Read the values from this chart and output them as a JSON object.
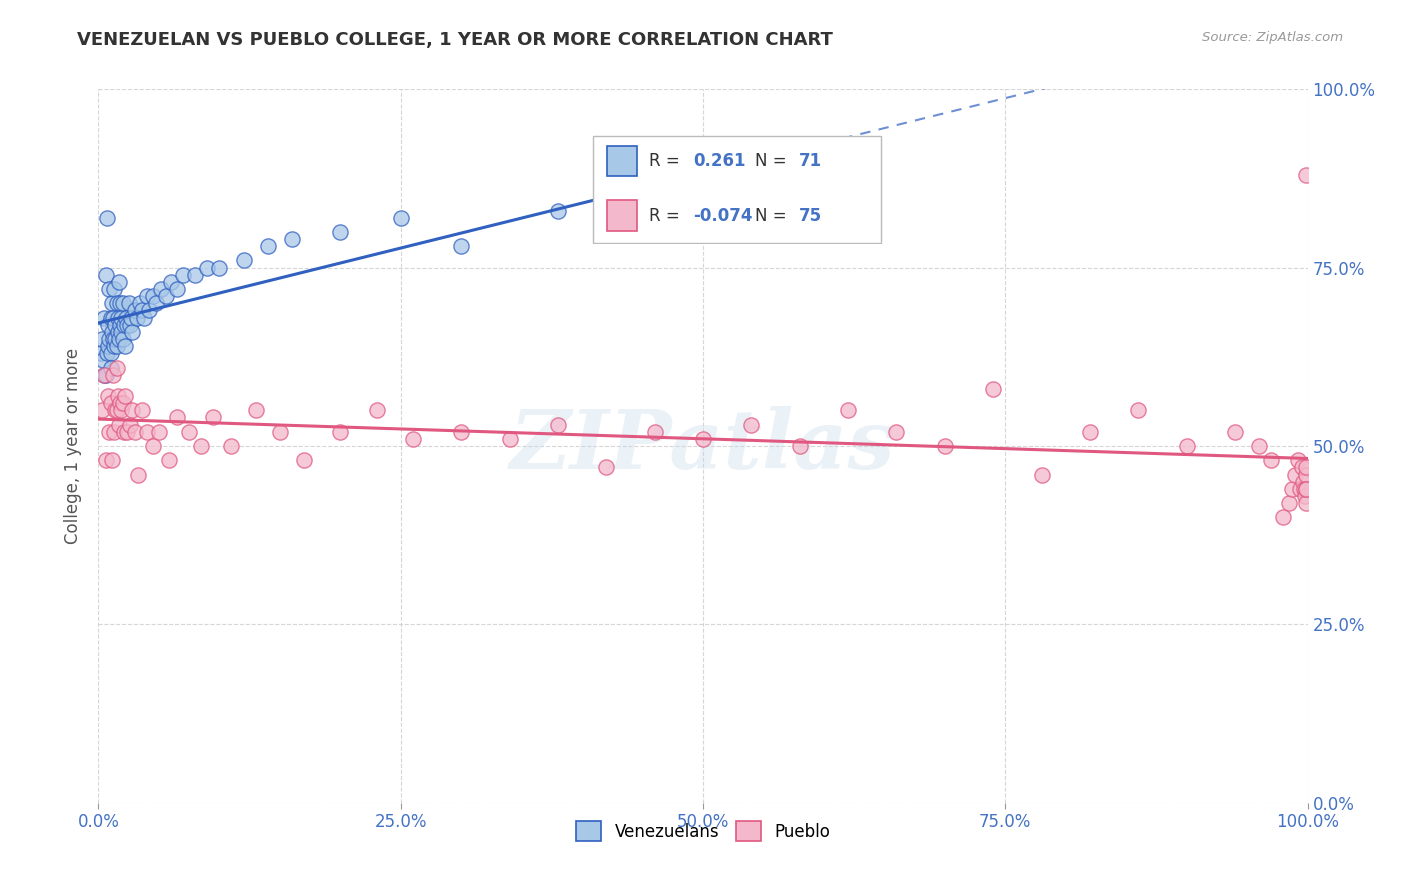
{
  "title": "VENEZUELAN VS PUEBLO COLLEGE, 1 YEAR OR MORE CORRELATION CHART",
  "source": "Source: ZipAtlas.com",
  "ylabel": "College, 1 year or more",
  "r_venezuelan": 0.261,
  "n_venezuelan": 71,
  "r_pueblo": -0.074,
  "n_pueblo": 75,
  "legend_labels": [
    "Venezuelans",
    "Pueblo"
  ],
  "color_venezuelan": "#a8c8e8",
  "color_pueblo": "#f4b8cc",
  "line_color_venezuelan": "#3060c0",
  "line_color_pueblo": "#e05880",
  "watermark": "ZIPatlas",
  "xmin": 0.0,
  "xmax": 1.0,
  "ymin": 0.0,
  "ymax": 1.0,
  "ytick_color": "#4472c4",
  "xtick_color": "#4472c4",
  "venezuelan_x": [
    0.002,
    0.003,
    0.004,
    0.005,
    0.005,
    0.006,
    0.006,
    0.007,
    0.007,
    0.008,
    0.008,
    0.009,
    0.009,
    0.01,
    0.01,
    0.01,
    0.011,
    0.011,
    0.012,
    0.012,
    0.013,
    0.013,
    0.014,
    0.014,
    0.015,
    0.015,
    0.016,
    0.016,
    0.017,
    0.017,
    0.018,
    0.018,
    0.019,
    0.019,
    0.02,
    0.02,
    0.021,
    0.022,
    0.023,
    0.024,
    0.025,
    0.026,
    0.027,
    0.028,
    0.03,
    0.032,
    0.034,
    0.036,
    0.038,
    0.04,
    0.042,
    0.045,
    0.048,
    0.052,
    0.056,
    0.06,
    0.065,
    0.07,
    0.08,
    0.09,
    0.1,
    0.12,
    0.14,
    0.16,
    0.2,
    0.25,
    0.3,
    0.38,
    0.45,
    0.52,
    0.6
  ],
  "venezuelan_y": [
    0.63,
    0.65,
    0.62,
    0.68,
    0.6,
    0.74,
    0.6,
    0.82,
    0.63,
    0.64,
    0.67,
    0.65,
    0.72,
    0.63,
    0.68,
    0.61,
    0.66,
    0.7,
    0.65,
    0.68,
    0.64,
    0.72,
    0.65,
    0.67,
    0.64,
    0.7,
    0.66,
    0.68,
    0.65,
    0.73,
    0.67,
    0.7,
    0.66,
    0.68,
    0.65,
    0.7,
    0.67,
    0.64,
    0.68,
    0.67,
    0.7,
    0.67,
    0.68,
    0.66,
    0.69,
    0.68,
    0.7,
    0.69,
    0.68,
    0.71,
    0.69,
    0.71,
    0.7,
    0.72,
    0.71,
    0.73,
    0.72,
    0.74,
    0.74,
    0.75,
    0.75,
    0.76,
    0.78,
    0.79,
    0.8,
    0.82,
    0.78,
    0.83,
    0.85,
    0.86,
    0.88
  ],
  "pueblo_x": [
    0.003,
    0.005,
    0.006,
    0.008,
    0.009,
    0.01,
    0.011,
    0.012,
    0.013,
    0.014,
    0.015,
    0.015,
    0.016,
    0.017,
    0.018,
    0.019,
    0.02,
    0.021,
    0.022,
    0.024,
    0.026,
    0.028,
    0.03,
    0.033,
    0.036,
    0.04,
    0.045,
    0.05,
    0.058,
    0.065,
    0.075,
    0.085,
    0.095,
    0.11,
    0.13,
    0.15,
    0.17,
    0.2,
    0.23,
    0.26,
    0.3,
    0.34,
    0.38,
    0.42,
    0.46,
    0.5,
    0.54,
    0.58,
    0.62,
    0.66,
    0.7,
    0.74,
    0.78,
    0.82,
    0.86,
    0.9,
    0.94,
    0.96,
    0.97,
    0.98,
    0.985,
    0.987,
    0.99,
    0.992,
    0.994,
    0.995,
    0.996,
    0.997,
    0.998,
    0.999,
    0.999,
    0.999,
    0.999,
    0.999,
    0.999
  ],
  "pueblo_y": [
    0.55,
    0.6,
    0.48,
    0.57,
    0.52,
    0.56,
    0.48,
    0.6,
    0.52,
    0.55,
    0.55,
    0.61,
    0.57,
    0.53,
    0.56,
    0.55,
    0.56,
    0.52,
    0.57,
    0.52,
    0.53,
    0.55,
    0.52,
    0.46,
    0.55,
    0.52,
    0.5,
    0.52,
    0.48,
    0.54,
    0.52,
    0.5,
    0.54,
    0.5,
    0.55,
    0.52,
    0.48,
    0.52,
    0.55,
    0.51,
    0.52,
    0.51,
    0.53,
    0.47,
    0.52,
    0.51,
    0.53,
    0.5,
    0.55,
    0.52,
    0.5,
    0.58,
    0.46,
    0.52,
    0.55,
    0.5,
    0.52,
    0.5,
    0.48,
    0.4,
    0.42,
    0.44,
    0.46,
    0.48,
    0.44,
    0.47,
    0.45,
    0.44,
    0.43,
    0.46,
    0.42,
    0.44,
    0.47,
    0.88,
    0.44
  ],
  "grid_color": "#cccccc",
  "background_color": "#ffffff"
}
